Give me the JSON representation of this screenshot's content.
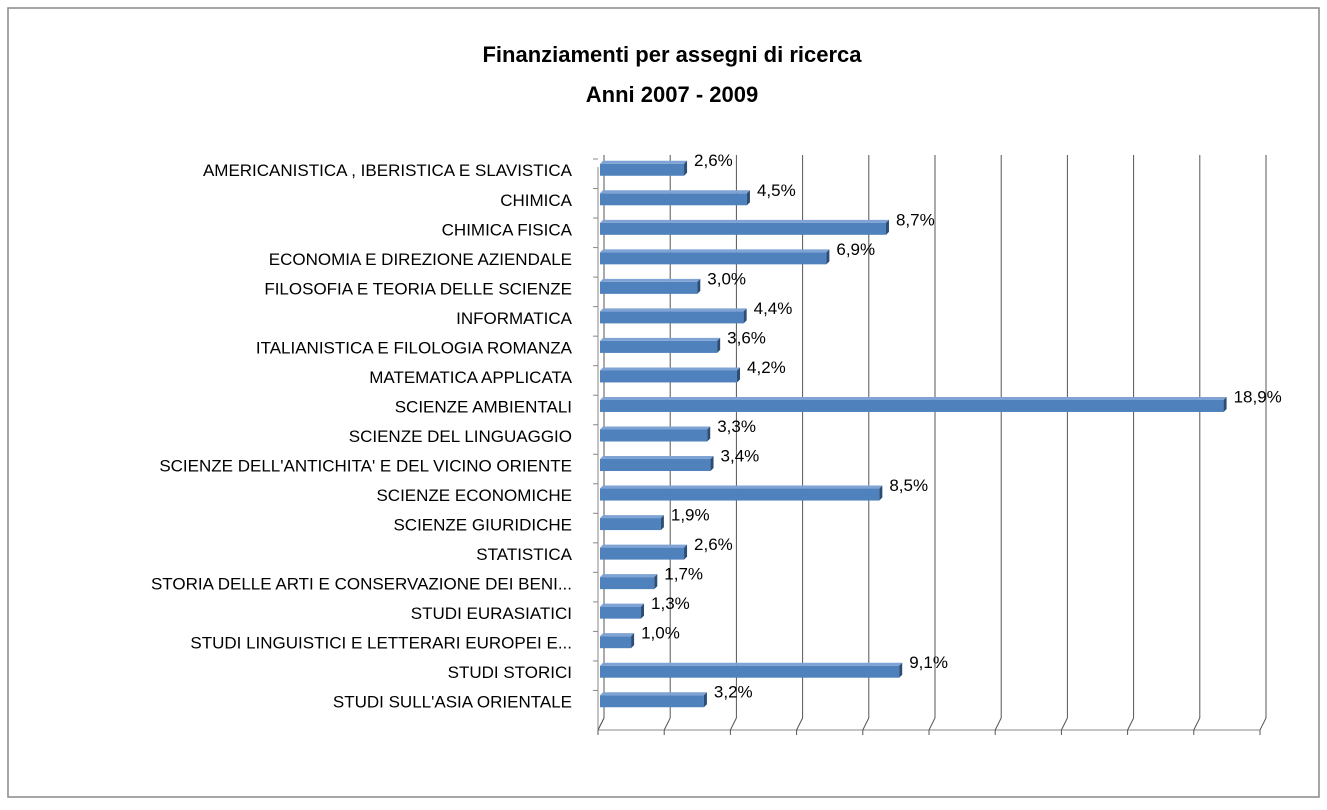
{
  "chart_data": {
    "type": "bar",
    "orientation": "horizontal",
    "title": "Finanziamenti per assegni di ricerca",
    "subtitle": "Anni 2007 - 2009",
    "categories": [
      "AMERICANISTICA , IBERISTICA E SLAVISTICA",
      "CHIMICA",
      "CHIMICA FISICA",
      "ECONOMIA E DIREZIONE AZIENDALE",
      "FILOSOFIA E TEORIA DELLE SCIENZE",
      "INFORMATICA",
      "ITALIANISTICA E FILOLOGIA ROMANZA",
      "MATEMATICA APPLICATA",
      "SCIENZE AMBIENTALI",
      "SCIENZE DEL LINGUAGGIO",
      "SCIENZE DELL'ANTICHITA' E DEL VICINO ORIENTE",
      "SCIENZE ECONOMICHE",
      "SCIENZE GIURIDICHE",
      "STATISTICA",
      "STORIA DELLE ARTI E CONSERVAZIONE DEI BENI...",
      "STUDI EURASIATICI",
      "STUDI LINGUISTICI E LETTERARI EUROPEI E...",
      "STUDI STORICI",
      "STUDI SULL'ASIA ORIENTALE"
    ],
    "values": [
      2.6,
      4.5,
      8.7,
      6.9,
      3.0,
      4.4,
      3.6,
      4.2,
      18.9,
      3.3,
      3.4,
      8.5,
      1.9,
      2.6,
      1.7,
      1.3,
      1.0,
      9.1,
      3.2
    ],
    "value_labels": [
      "2,6%",
      "4,5%",
      "8,7%",
      "6,9%",
      "3,0%",
      "4,4%",
      "3,6%",
      "4,2%",
      "18,9%",
      "3,3%",
      "3,4%",
      "8,5%",
      "1,9%",
      "2,6%",
      "1,7%",
      "1,3%",
      "1,0%",
      "9,1%",
      "3,2%"
    ],
    "color": "#4f81bd",
    "xlim": [
      0,
      20
    ],
    "xticks": [
      0,
      2,
      4,
      6,
      8,
      10,
      12,
      14,
      16,
      18,
      20
    ],
    "grid": true
  }
}
